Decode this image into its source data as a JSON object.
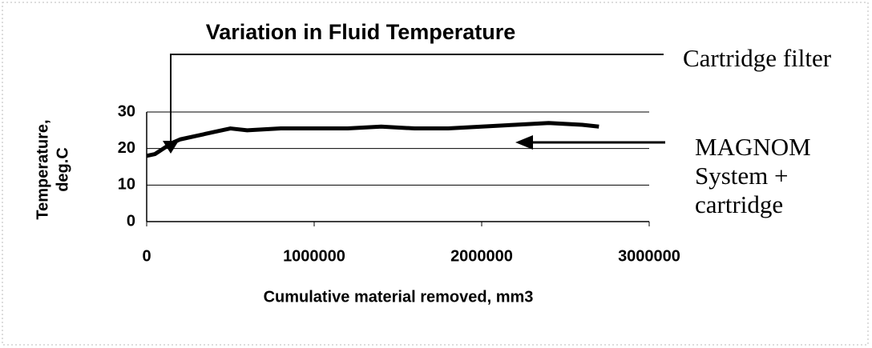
{
  "chart_data": {
    "type": "line",
    "title": "Variation in Fluid Temperature",
    "xlabel": "Cumulative material removed, mm3",
    "ylabel": [
      "Temperature,",
      "deg.C"
    ],
    "x": [
      0,
      50000,
      100000,
      150000,
      200000,
      300000,
      400000,
      500000,
      600000,
      800000,
      1000000,
      1200000,
      1400000,
      1600000,
      1800000,
      2000000,
      2200000,
      2400000,
      2600000,
      2700000
    ],
    "series": [
      {
        "color": "#000000",
        "values": [
          18,
          18.5,
          20,
          21.5,
          22.5,
          23.5,
          24.5,
          25.5,
          25,
          25.5,
          25.5,
          25.5,
          26,
          25.5,
          25.5,
          26,
          26.5,
          27,
          26.5,
          26
        ]
      }
    ],
    "xlim": [
      0,
      3000000
    ],
    "xticks": [
      0,
      1000000,
      2000000,
      3000000
    ],
    "ylim": [
      0,
      30
    ],
    "yticks": [
      0,
      10,
      20,
      30
    ],
    "grid": true,
    "annotations": [
      {
        "lines": [
          "Cartridge filter"
        ]
      },
      {
        "lines": [
          "MAGNOM",
          "System +",
          "cartridge"
        ]
      }
    ]
  }
}
